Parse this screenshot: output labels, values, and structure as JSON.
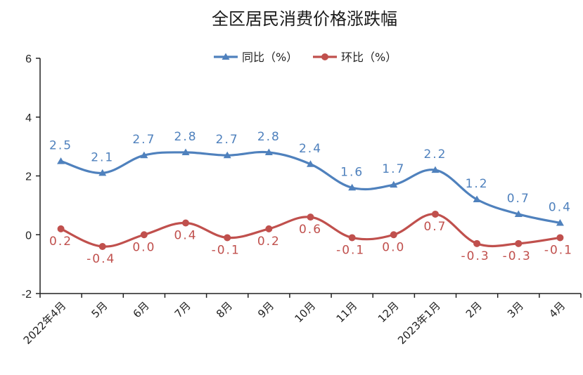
{
  "chart_data": {
    "type": "line",
    "title": "全区居民消费价格涨跌幅",
    "categories": [
      "2022年4月",
      "5月",
      "6月",
      "7月",
      "8月",
      "9月",
      "10月",
      "11月",
      "12月",
      "2023年1月",
      "2月",
      "3月",
      "4月"
    ],
    "ylim": [
      -2,
      6
    ],
    "yticks": [
      "-2",
      "0",
      "2",
      "4",
      "6"
    ],
    "legend_position": "top-center",
    "series": [
      {
        "name": "同比（%）",
        "color": "#4F81BD",
        "marker": "triangle",
        "values": [
          2.5,
          2.1,
          2.7,
          2.8,
          2.7,
          2.8,
          2.4,
          1.6,
          1.7,
          2.2,
          1.2,
          0.7,
          0.4
        ],
        "labels": [
          "2.5",
          "2.1",
          "2.7",
          "2.8",
          "2.7",
          "2.8",
          "2.4",
          "1.6",
          "1.7",
          "2.2",
          "1.2",
          "0.7",
          "0.4"
        ]
      },
      {
        "name": "环比（%）",
        "color": "#C0504D",
        "marker": "circle",
        "values": [
          0.2,
          -0.4,
          0.0,
          0.4,
          -0.1,
          0.2,
          0.6,
          -0.1,
          0.0,
          0.7,
          -0.3,
          -0.3,
          -0.1
        ],
        "labels": [
          "0.2",
          "-0.4",
          "0.0",
          "0.4",
          "-0.1",
          "0.2",
          "0.6",
          "-0.1",
          "0.0",
          "0.7",
          "-0.3",
          "-0.3",
          "-0.1"
        ]
      }
    ]
  }
}
